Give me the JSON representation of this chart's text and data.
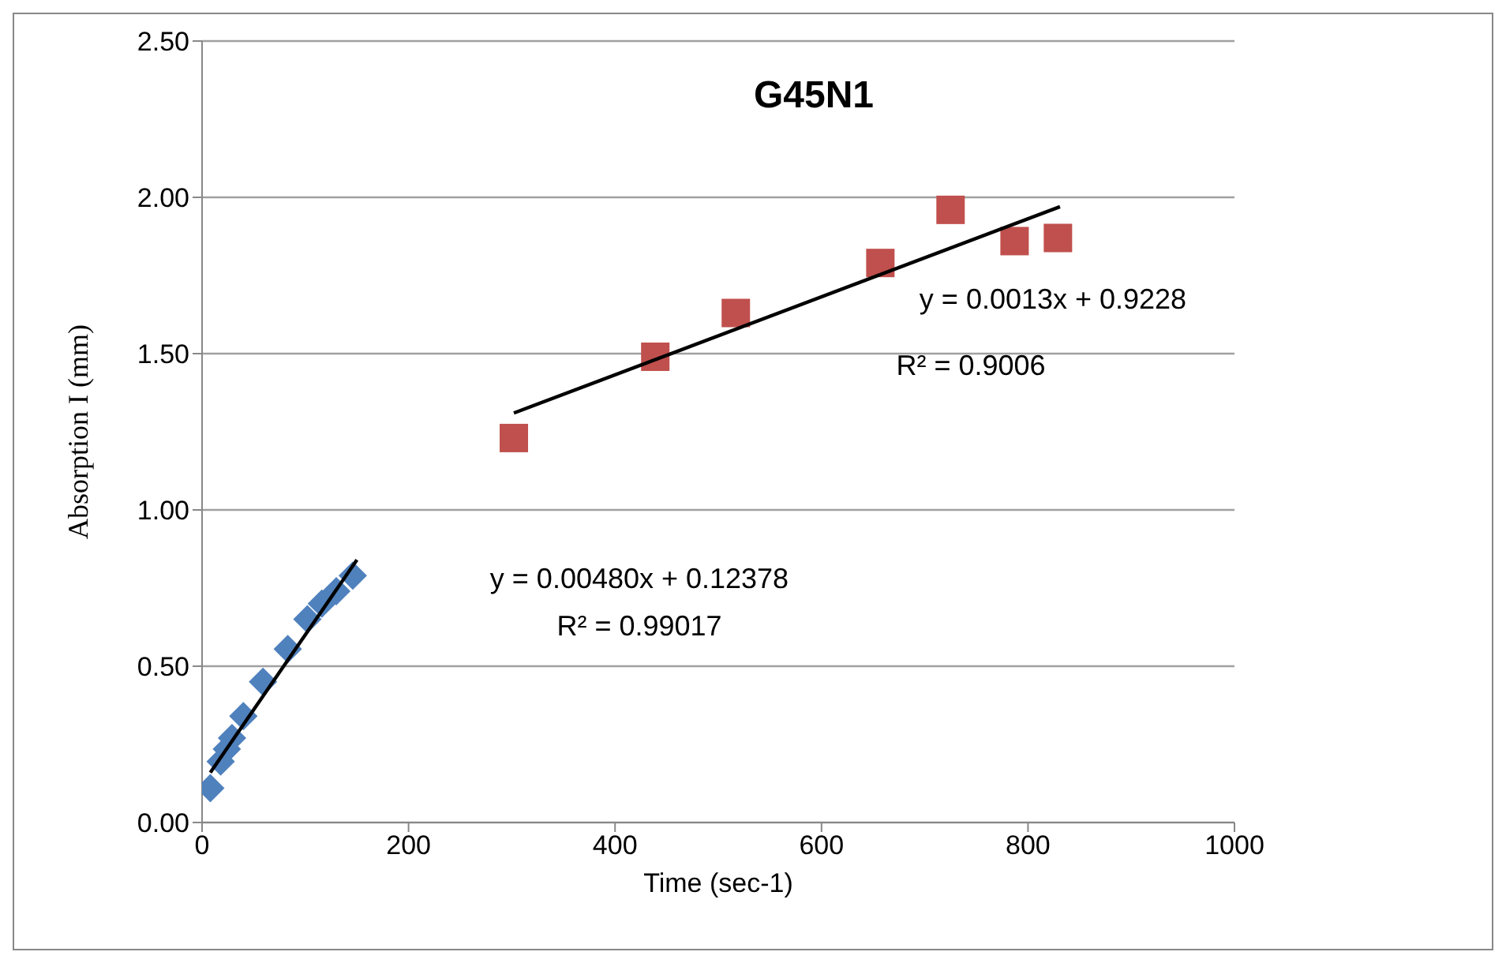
{
  "chart_data": {
    "type": "scatter",
    "title": "G45N1",
    "xlabel": "Time (sec-1)",
    "ylabel": "Absorption I (mm)",
    "xlim": [
      0,
      1000
    ],
    "xticks": [
      0,
      200,
      400,
      600,
      800,
      1000
    ],
    "ylim": [
      0,
      2.5
    ],
    "yticks": [
      {
        "value": 0,
        "label": "0.00"
      },
      {
        "value": 0.5,
        "label": "0.50"
      },
      {
        "value": 1,
        "label": "1.00"
      },
      {
        "value": 1.5,
        "label": "1.50"
      },
      {
        "value": 2,
        "label": "2.00"
      },
      {
        "value": 2.5,
        "label": "2.50"
      }
    ],
    "grid": "y",
    "legend": false,
    "series": [
      {
        "type": "scatter",
        "marker": "diamond",
        "color": "#4f81bd",
        "x": [
          8,
          18,
          24,
          29,
          40,
          59,
          83,
          102,
          116,
          130,
          146
        ],
        "values": [
          0.11,
          0.195,
          0.235,
          0.27,
          0.34,
          0.45,
          0.555,
          0.65,
          0.7,
          0.74,
          0.79
        ]
      },
      {
        "type": "scatter",
        "marker": "square",
        "color": "#c0504d",
        "x": [
          302,
          439,
          517,
          657,
          725,
          787,
          829
        ],
        "values": [
          1.23,
          1.49,
          1.63,
          1.79,
          1.96,
          1.86,
          1.87
        ]
      },
      {
        "type": "line",
        "marker": "none",
        "color": "#000000",
        "x": [
          8,
          150
        ],
        "values": [
          0.16,
          0.84
        ]
      },
      {
        "type": "line",
        "marker": "none",
        "color": "#000000",
        "x": [
          302,
          831
        ],
        "values": [
          1.31,
          1.97
        ]
      }
    ],
    "annotations": [
      "y = 0.00480x + 0.12378",
      "R² = 0.99017",
      "y = 0.0013x + 0.9228",
      "R² = 0.9006"
    ]
  }
}
